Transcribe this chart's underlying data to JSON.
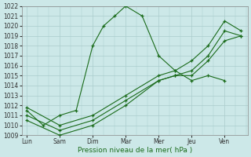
{
  "background_color": "#cce8e8",
  "grid_color": "#aacccc",
  "line_color": "#1a6b1a",
  "marker": "+",
  "ylim": [
    1009,
    1022
  ],
  "xlabel": "Pression niveau de la mer( hPa )",
  "day_labels": [
    "Lun",
    "Sam",
    "Dim",
    "Mar",
    "Mer",
    "Jeu",
    "Ven"
  ],
  "xtick_positions": [
    0,
    1,
    2,
    3,
    4,
    5,
    6
  ],
  "series": [
    {
      "x": [
        0,
        0.5,
        1.0,
        1.5,
        2.0,
        2.33,
        2.67,
        3.0,
        3.5,
        4.0,
        4.5,
        5.0,
        5.5,
        6.0
      ],
      "y": [
        1011.5,
        1010.0,
        1011.0,
        1011.5,
        1018.0,
        1020.0,
        1021.0,
        1022.0,
        1021.0,
        1017.0,
        1015.5,
        1014.5,
        1015.0,
        1014.5
      ]
    },
    {
      "x": [
        0,
        1.0,
        2.0,
        3.0,
        4.0,
        4.5,
        5.0,
        5.5,
        6.0,
        6.5
      ],
      "y": [
        1010.5,
        1009.0,
        1010.0,
        1012.0,
        1014.5,
        1015.0,
        1015.0,
        1016.5,
        1018.5,
        1019.0
      ]
    },
    {
      "x": [
        0,
        1.0,
        2.0,
        3.0,
        4.0,
        4.5,
        5.0,
        5.5,
        6.0,
        6.5
      ],
      "y": [
        1011.0,
        1009.5,
        1010.5,
        1012.5,
        1014.5,
        1015.0,
        1015.5,
        1017.0,
        1019.5,
        1019.0
      ]
    },
    {
      "x": [
        0,
        1.0,
        2.0,
        3.0,
        4.0,
        4.5,
        5.0,
        5.5,
        6.0,
        6.5
      ],
      "y": [
        1011.8,
        1010.0,
        1011.0,
        1013.0,
        1015.0,
        1015.5,
        1016.5,
        1018.0,
        1020.5,
        1019.5
      ]
    }
  ],
  "xlim": [
    -0.15,
    6.7
  ]
}
